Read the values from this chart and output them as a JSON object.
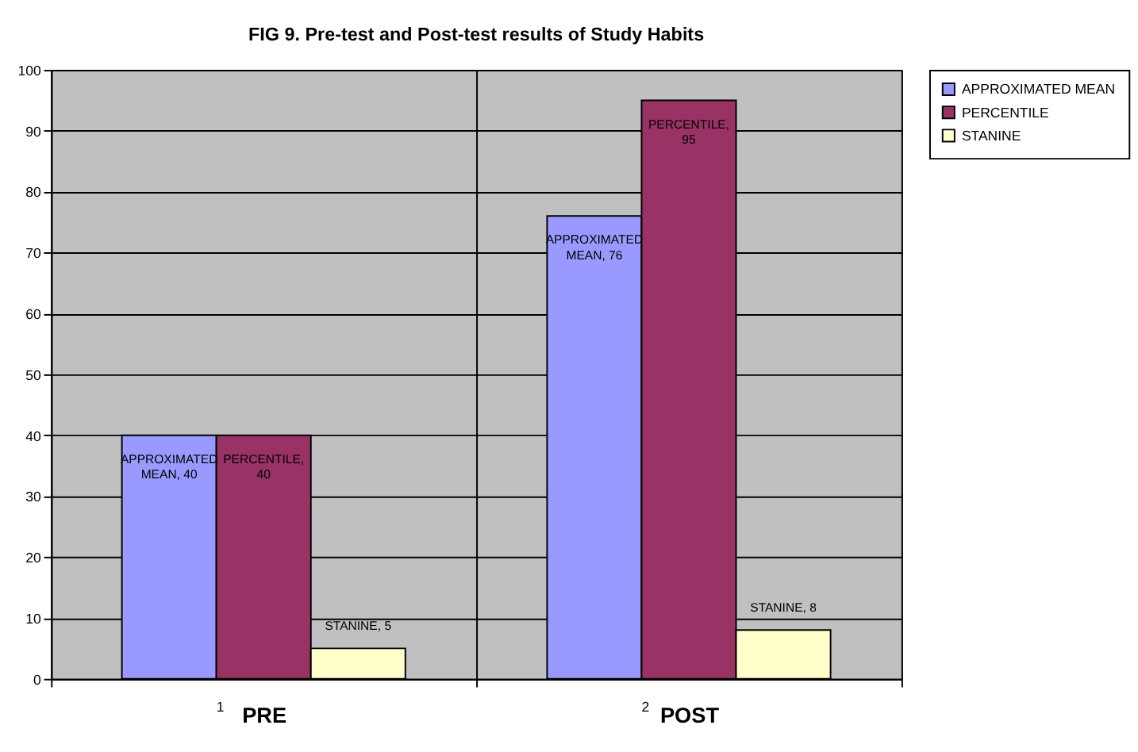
{
  "chart_data": {
    "type": "bar",
    "title": "FIG 9. Pre-test and Post-test results of Study Habits",
    "categories": [
      "PRE",
      "POST"
    ],
    "series": [
      {
        "name": "APPROXIMATED MEAN",
        "color": "#9999ff",
        "values": [
          40,
          76
        ],
        "value_labels": [
          "APPROXIMATED MEAN, 40",
          "APPROXIMATED MEAN, 76"
        ]
      },
      {
        "name": "PERCENTILE",
        "color": "#993366",
        "values": [
          40,
          95
        ],
        "value_labels": [
          "PERCENTILE, 40",
          "PERCENTILE, 95"
        ]
      },
      {
        "name": "STANINE",
        "color": "#ffffcc",
        "values": [
          5,
          8
        ],
        "value_labels": [
          "STANINE, 5",
          "STANINE, 8"
        ]
      }
    ],
    "annotations": [
      "1",
      "2"
    ],
    "ylim": [
      0,
      100
    ],
    "yticks": [
      0,
      10,
      20,
      30,
      40,
      50,
      60,
      70,
      80,
      90,
      100
    ],
    "grid": true,
    "legend": "top right"
  }
}
